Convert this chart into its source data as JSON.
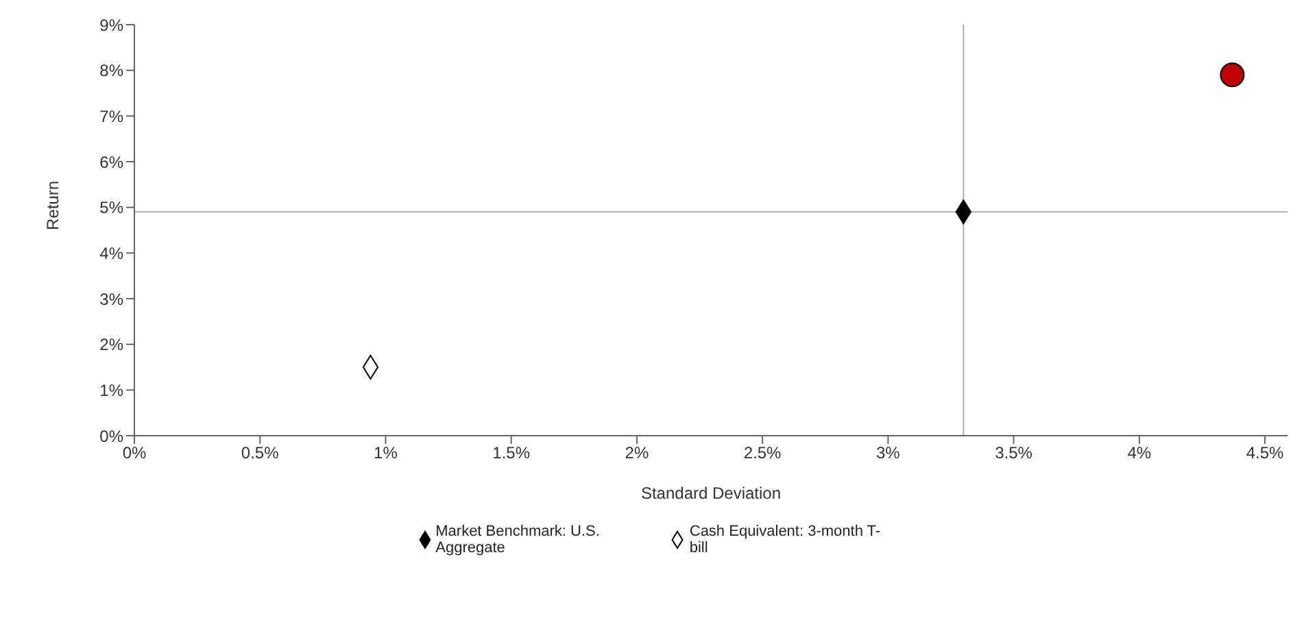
{
  "chart_data": {
    "type": "scatter",
    "xlabel": "Standard Deviation",
    "ylabel": "Return",
    "xlim": [
      0,
      4.59
    ],
    "ylim": [
      0,
      9
    ],
    "xticks": [
      {
        "value": 0,
        "label": "0%"
      },
      {
        "value": 0.5,
        "label": "0.5%"
      },
      {
        "value": 1,
        "label": "1%"
      },
      {
        "value": 1.5,
        "label": "1.5%"
      },
      {
        "value": 2,
        "label": "2%"
      },
      {
        "value": 2.5,
        "label": "2.5%"
      },
      {
        "value": 3,
        "label": "3%"
      },
      {
        "value": 3.5,
        "label": "3.5%"
      },
      {
        "value": 4,
        "label": "4%"
      },
      {
        "value": 4.5,
        "label": "4.5%"
      }
    ],
    "yticks": [
      {
        "value": 0,
        "label": "0%"
      },
      {
        "value": 1,
        "label": "1%"
      },
      {
        "value": 2,
        "label": "2%"
      },
      {
        "value": 3,
        "label": "3%"
      },
      {
        "value": 4,
        "label": "4%"
      },
      {
        "value": 5,
        "label": "5%"
      },
      {
        "value": 6,
        "label": "6%"
      },
      {
        "value": 7,
        "label": "7%"
      },
      {
        "value": 8,
        "label": "8%"
      },
      {
        "value": 9,
        "label": "9%"
      }
    ],
    "series": [
      {
        "color": "#c00000",
        "marker": "circle",
        "x": [
          4.37
        ],
        "values": [
          7.9
        ]
      },
      {
        "name": "Market Benchmark: U.S. Aggregate",
        "color": "#000000",
        "marker": "diamond",
        "x": [
          3.3
        ],
        "values": [
          4.9
        ]
      },
      {
        "name": "Cash Equivalent: 3-month T-bill",
        "color": "#ffffff",
        "marker": "diamond",
        "x": [
          0.94
        ],
        "values": [
          1.5
        ]
      }
    ],
    "ref_lines": [
      {
        "axis": "x",
        "value": 3.3,
        "color": "#b0b0b0"
      },
      {
        "axis": "y",
        "value": 4.9,
        "color": "#b0b0b0"
      }
    ],
    "grid": false,
    "legend": "bottom"
  }
}
